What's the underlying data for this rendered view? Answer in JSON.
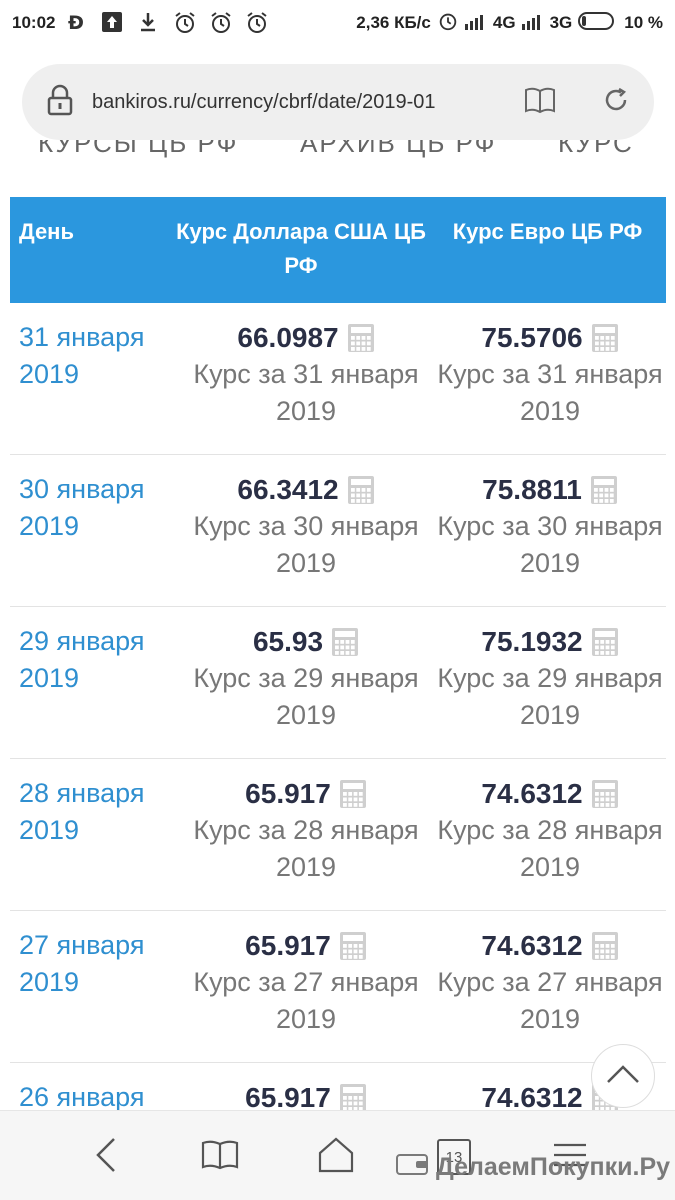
{
  "status_bar": {
    "time": "10:02",
    "speed": "2,36 КБ/с",
    "network_1": "4G",
    "network_2": "3G",
    "battery": "10 %"
  },
  "browser": {
    "url": "bankiros.ru/currency/cbrf/date/2019-01",
    "icons": [
      "lock-icon",
      "reader-icon",
      "reload-icon"
    ]
  },
  "nav": {
    "items": [
      "КУРСЫ ЦБ РФ",
      "АРХИВ ЦБ РФ",
      "КУРС"
    ]
  },
  "table": {
    "headers": {
      "day": "День",
      "usd": "Курс Доллара США ЦБ РФ",
      "eur": "Курс Евро ЦБ РФ"
    },
    "rows": [
      {
        "day": "31 января 2019",
        "usd": "66.0987",
        "usd_caption": "Курс за 31 января 2019",
        "eur": "75.5706",
        "eur_caption": "Курс за 31 января 2019"
      },
      {
        "day": "30 января 2019",
        "usd": "66.3412",
        "usd_caption": "Курс за 30 января 2019",
        "eur": "75.8811",
        "eur_caption": "Курс за 30 января 2019"
      },
      {
        "day": "29 января 2019",
        "usd": "65.93",
        "usd_caption": "Курс за 29 января 2019",
        "eur": "75.1932",
        "eur_caption": "Курс за 29 января 2019"
      },
      {
        "day": "28 января 2019",
        "usd": "65.917",
        "usd_caption": "Курс за 28 января 2019",
        "eur": "74.6312",
        "eur_caption": "Курс за 28 января 2019"
      },
      {
        "day": "27 января 2019",
        "usd": "65.917",
        "usd_caption": "Курс за 27 января 2019",
        "eur": "74.6312",
        "eur_caption": "Курс за 27 января 2019"
      },
      {
        "day": "26 января",
        "usd": "65.917",
        "usd_caption": "",
        "eur": "74.6312",
        "eur_caption": ""
      }
    ]
  },
  "bottom_nav": {
    "tabs_count": "13",
    "icons": [
      "back-icon",
      "bookmarks-icon",
      "home-icon",
      "tabs-icon",
      "menu-icon"
    ]
  },
  "watermark": "ДелаемПокупки.Ру",
  "colors": {
    "header_bg": "#2b97de",
    "link": "#2f8fd0",
    "value": "#2a2f45",
    "caption": "#777777"
  }
}
